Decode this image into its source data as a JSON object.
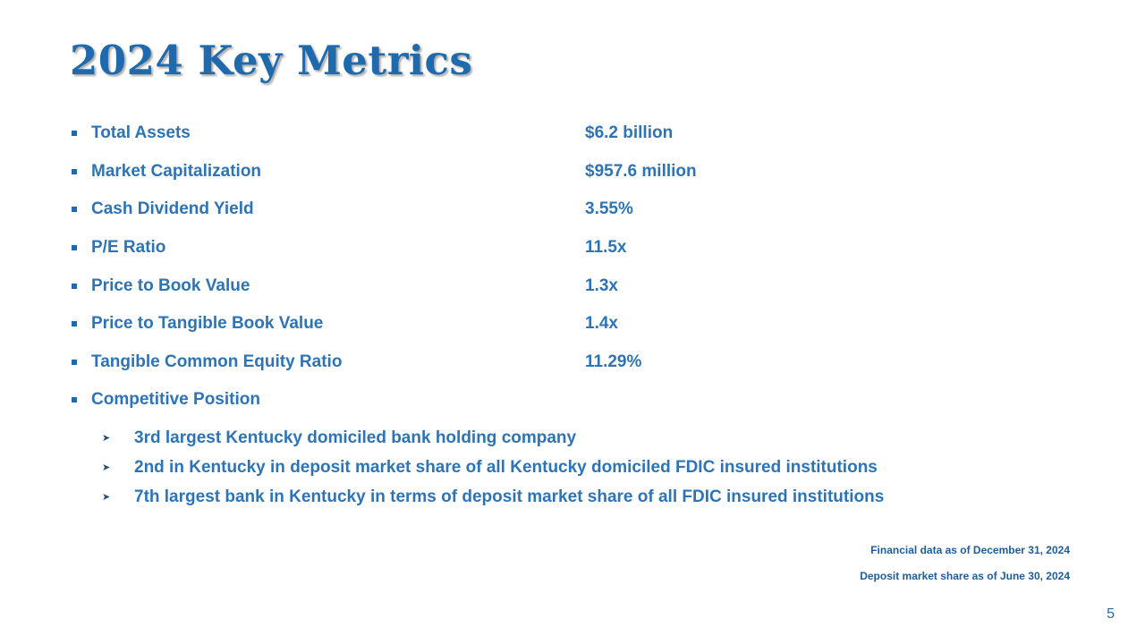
{
  "slide": {
    "title": "2024 Key Metrics",
    "page_number": "5"
  },
  "metrics": [
    {
      "label": "Total Assets",
      "value": "$6.2 billion"
    },
    {
      "label": "Market Capitalization",
      "value": "$957.6 million"
    },
    {
      "label": "Cash Dividend Yield",
      "value": "3.55%"
    },
    {
      "label": "P/E Ratio",
      "value": "11.5x"
    },
    {
      "label": "Price to Book Value",
      "value": "1.3x"
    },
    {
      "label": "Price to Tangible Book Value",
      "value": "1.4x"
    },
    {
      "label": "Tangible Common Equity Ratio",
      "value": "11.29%"
    },
    {
      "label": "Competitive Position",
      "value": ""
    }
  ],
  "competitive_position": [
    "3rd largest Kentucky domiciled bank holding company",
    "2nd in Kentucky in deposit market share of all Kentucky domiciled FDIC insured institutions",
    "7th largest bank in Kentucky in terms of deposit market share of all FDIC insured institutions"
  ],
  "footnotes": [
    "Financial data as of December 31, 2024",
    "Deposit market share as of June 30, 2024"
  ],
  "icons": {
    "metric_bullet": "square-bullet-icon",
    "sub_bullet": "arrowhead-bullet-icon"
  },
  "colors": {
    "title": "#1f6aad",
    "text": "#2e74b5",
    "footnote": "#1f5d99"
  }
}
